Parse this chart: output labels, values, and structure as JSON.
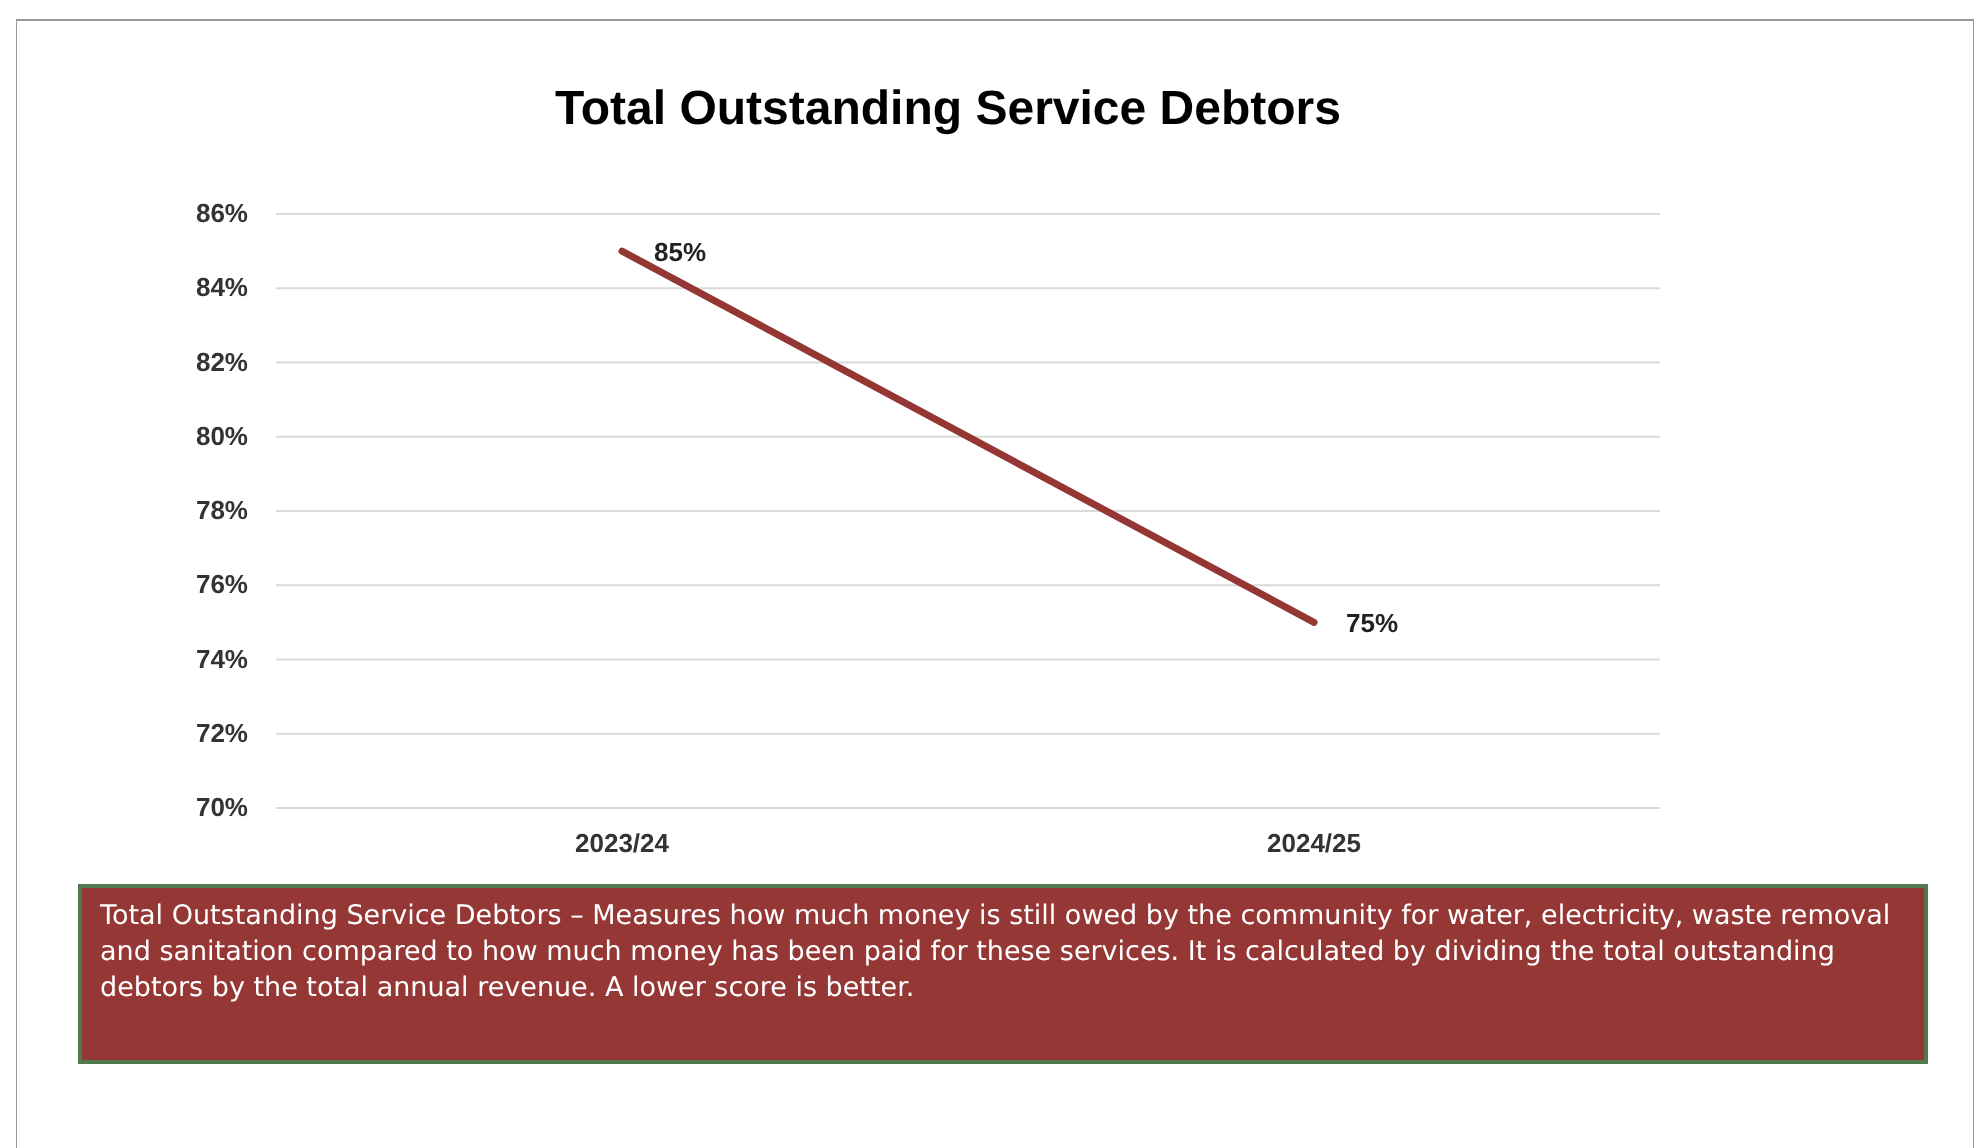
{
  "chart_data": {
    "type": "line",
    "title": "Total Outstanding Service Debtors",
    "categories": [
      "2023/24",
      "2024/25"
    ],
    "series": [
      {
        "color": "#943634",
        "values": [
          85,
          75
        ],
        "value_labels": [
          "85%",
          "75%"
        ]
      }
    ],
    "ylim": [
      70,
      86
    ],
    "yticks": [
      {
        "value": 70,
        "label": "70%"
      },
      {
        "value": 72,
        "label": "72%"
      },
      {
        "value": 74,
        "label": "74%"
      },
      {
        "value": 76,
        "label": "76%"
      },
      {
        "value": 78,
        "label": "78%"
      },
      {
        "value": 80,
        "label": "80%"
      },
      {
        "value": 82,
        "label": "82%"
      },
      {
        "value": 84,
        "label": "84%"
      },
      {
        "value": 86,
        "label": "86%"
      }
    ],
    "grid": "y",
    "marker": "none",
    "line_style": "solid",
    "annotations": [
      "Total Outstanding Service Debtors – Measures how much money is still owed by the community for water, electricity, waste removal and sanitation compared to how much money has been paid for these services. It is calculated by dividing the total outstanding debtors by the total annual revenue. A lower score is better."
    ]
  }
}
